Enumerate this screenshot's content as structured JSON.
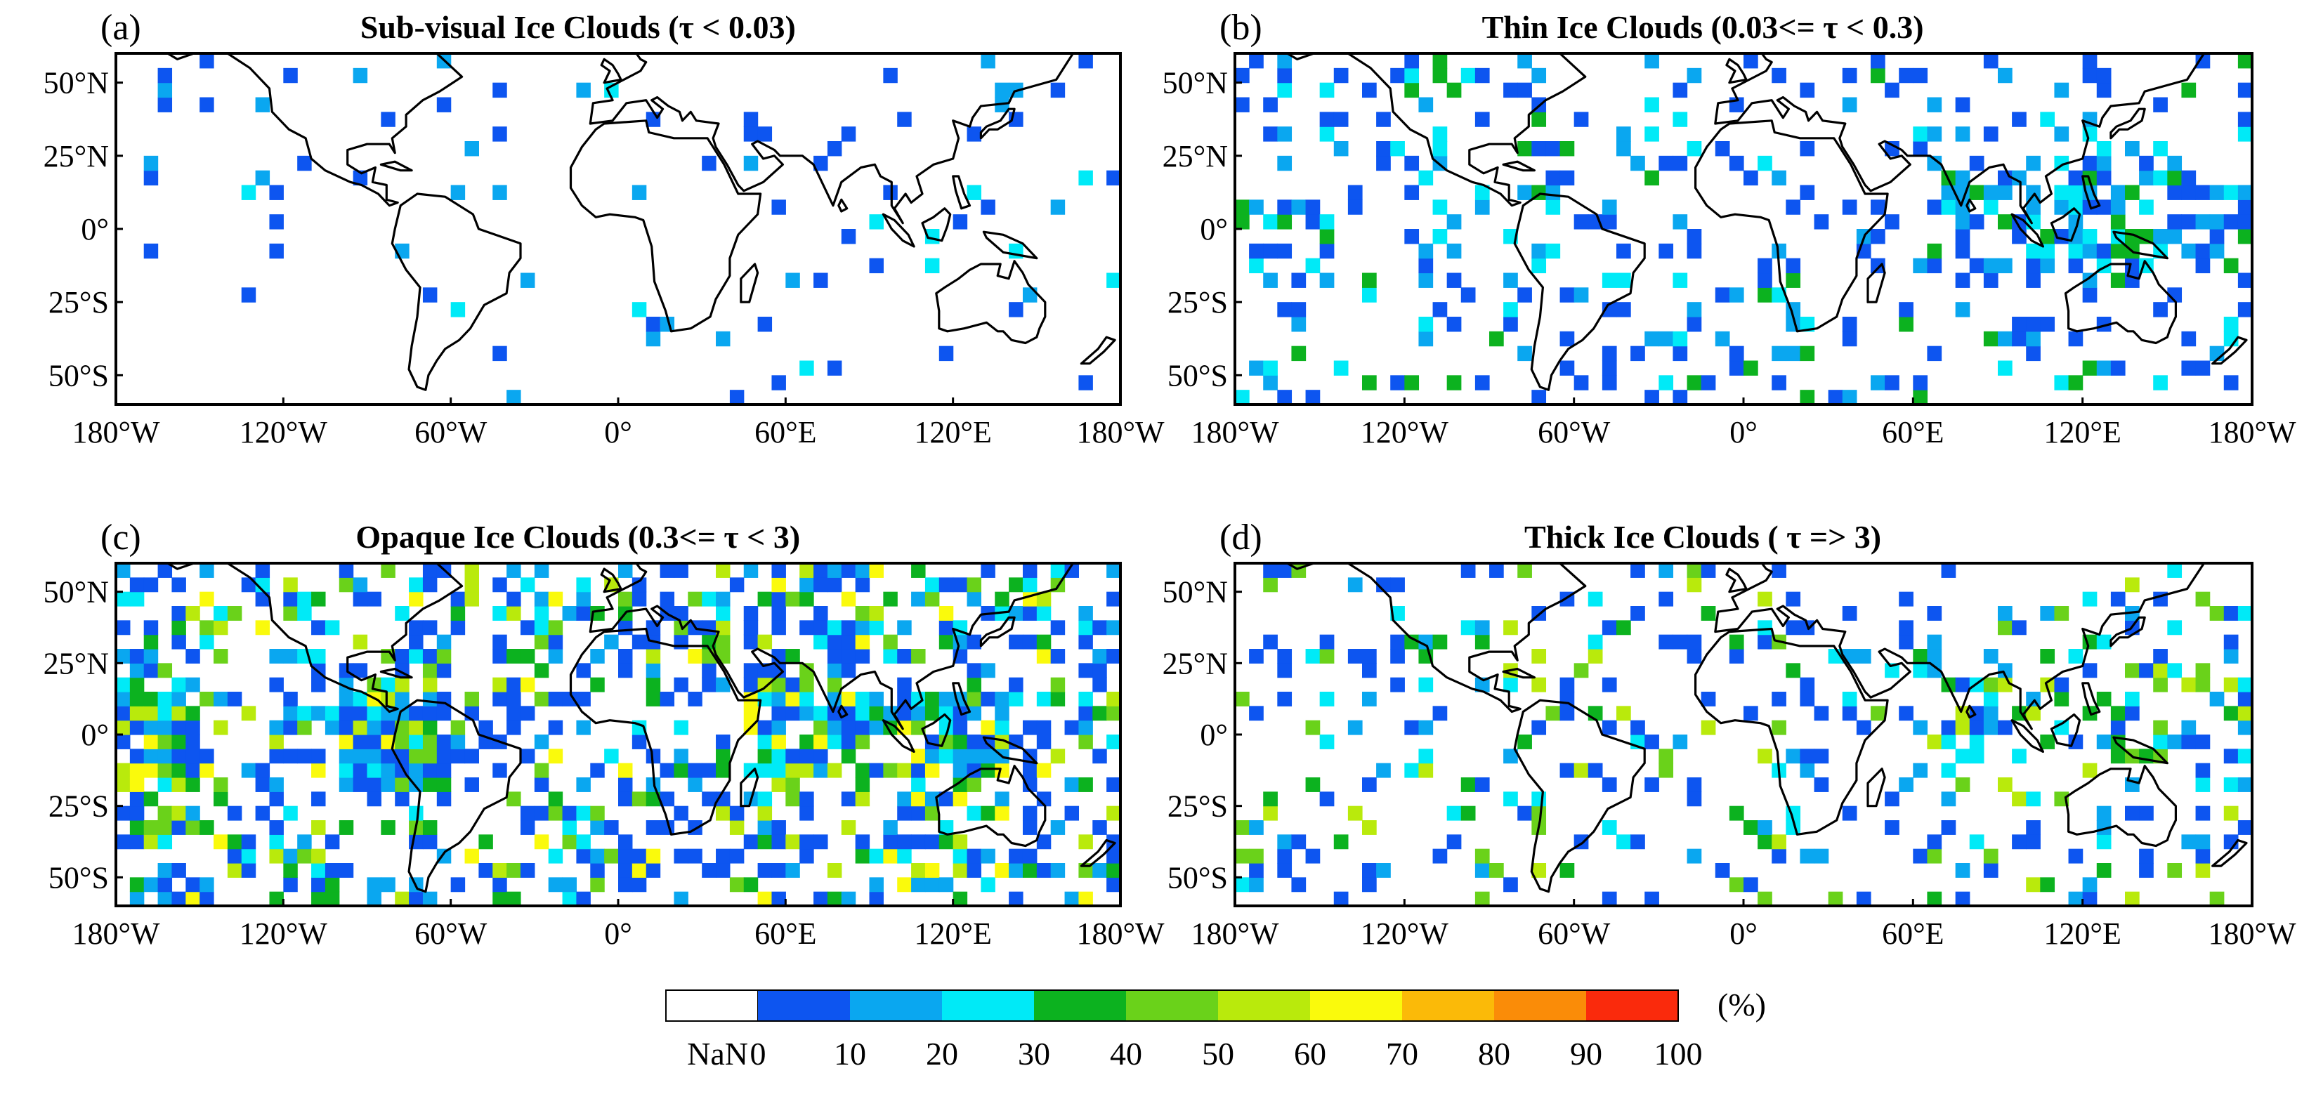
{
  "chart_data": [
    {
      "type": "heatmap",
      "id": "a",
      "panel_label": "(a)",
      "title": "Sub-visual Ice Clouds (τ < 0.03)",
      "x_ticks": [
        "180°W",
        "120°W",
        "60°W",
        "0°",
        "60°E",
        "120°E",
        "180°W"
      ],
      "y_ticks": [
        "50°N",
        "25°N",
        "0°",
        "25°S",
        "50°S"
      ],
      "x_range": [
        -180,
        180
      ],
      "y_range": [
        -60,
        60
      ],
      "cell_deg": 5,
      "density": 0.045,
      "max_level": 3,
      "hot_zones": []
    },
    {
      "type": "heatmap",
      "id": "b",
      "panel_label": "(b)",
      "title": "Thin Ice Clouds (0.03<= τ < 0.3)",
      "x_ticks": [
        "180°W",
        "120°W",
        "60°W",
        "0°",
        "60°E",
        "120°E",
        "180°W"
      ],
      "y_ticks": [
        "50°N",
        "25°N",
        "0°",
        "25°S",
        "50°S"
      ],
      "x_range": [
        -180,
        180
      ],
      "y_range": [
        -60,
        60
      ],
      "cell_deg": 5,
      "density": 0.2,
      "max_level": 4,
      "hot_zones": [
        [
          60,
          180,
          -15,
          25
        ],
        [
          -180,
          -140,
          -20,
          10
        ]
      ]
    },
    {
      "type": "heatmap",
      "id": "c",
      "panel_label": "(c)",
      "title": "Opaque Ice Clouds (0.3<= τ < 3)",
      "x_ticks": [
        "180°W",
        "120°W",
        "60°W",
        "0°",
        "60°E",
        "120°E",
        "180°W"
      ],
      "y_ticks": [
        "50°N",
        "25°N",
        "0°",
        "25°S",
        "50°S"
      ],
      "x_range": [
        -180,
        180
      ],
      "y_range": [
        -60,
        60
      ],
      "cell_deg": 5,
      "density": 0.42,
      "max_level": 7,
      "hot_zones": [
        [
          50,
          140,
          -15,
          15
        ],
        [
          -100,
          -60,
          -20,
          20
        ],
        [
          -180,
          -150,
          -20,
          15
        ]
      ]
    },
    {
      "type": "heatmap",
      "id": "d",
      "panel_label": "(d)",
      "title": "Thick Ice Clouds ( τ => 3)",
      "x_ticks": [
        "180°W",
        "120°W",
        "60°W",
        "0°",
        "60°E",
        "120°E",
        "180°W"
      ],
      "y_ticks": [
        "50°N",
        "25°N",
        "0°",
        "25°S",
        "50°S"
      ],
      "x_range": [
        -180,
        180
      ],
      "y_range": [
        -60,
        60
      ],
      "cell_deg": 5,
      "density": 0.17,
      "max_level": 6,
      "hot_zones": [
        [
          60,
          180,
          -10,
          25
        ],
        [
          -180,
          -150,
          -50,
          -30
        ]
      ]
    }
  ],
  "colorbar": {
    "nan_label": "NaN",
    "unit_label": "(%)",
    "tick_labels": [
      "0",
      "10",
      "20",
      "30",
      "40",
      "50",
      "60",
      "70",
      "80",
      "90",
      "100"
    ],
    "colors": [
      "#0d55f0",
      "#0aa7f0",
      "#00eaf7",
      "#0cb21f",
      "#6ad21a",
      "#b9ea0c",
      "#fafa0c",
      "#fbba08",
      "#fa8c08",
      "#fa2a0c"
    ],
    "nan_color": "#ffffff"
  }
}
